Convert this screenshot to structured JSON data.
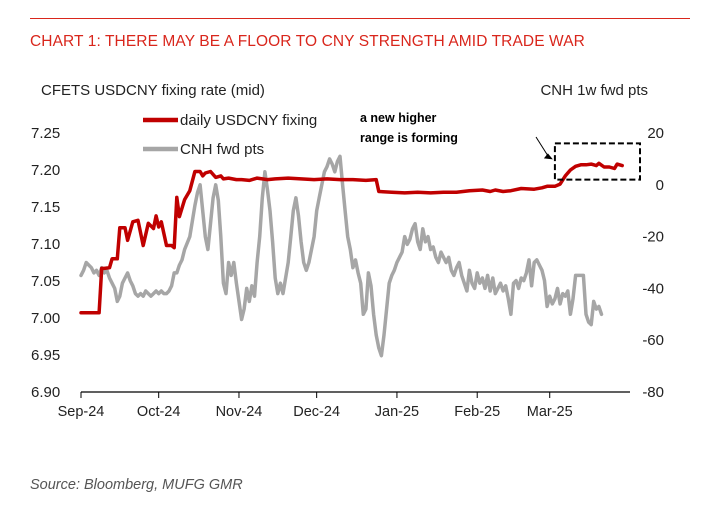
{
  "header": {
    "title": "CHART 1: THERE MAY BE A FLOOR TO CNY STRENGTH AMID TRADE WAR"
  },
  "footer": {
    "source": "Source: Bloomberg, MUFG GMR"
  },
  "colors": {
    "accent": "#d9261c",
    "fixing_line": "#c00000",
    "fwd_pts_line": "#a6a6a6",
    "text": "#222222"
  },
  "chart_data": {
    "type": "line",
    "title": "",
    "ylabel_left": "CFETS USDCNY fixing rate (mid)",
    "ylabel_right": "CNH 1w fwd pts",
    "x_tick_labels": [
      "Sep-24",
      "Oct-24",
      "Nov-24",
      "Dec-24",
      "Jan-25",
      "Feb-25",
      "Mar-25"
    ],
    "x_range_days": [
      0,
      212
    ],
    "x_ticks_days": [
      0,
      30,
      61,
      91,
      122,
      153,
      181
    ],
    "ylim_left": [
      6.9,
      7.25
    ],
    "y_ticks_left": [
      "7.25",
      "7.20",
      "7.15",
      "7.10",
      "7.05",
      "7.00",
      "6.95",
      "6.90"
    ],
    "ylim_right": [
      -80,
      20
    ],
    "y_ticks_right": [
      "20",
      "0",
      "-20",
      "-40",
      "-60",
      "-80"
    ],
    "annotation": {
      "line1": "a new higher",
      "line2": "range is forming"
    },
    "series": [
      {
        "name": "daily USDCNY fixing",
        "axis": "left",
        "points": [
          [
            0,
            7.007
          ],
          [
            7,
            7.007
          ],
          [
            8,
            7.067
          ],
          [
            9,
            7.067
          ],
          [
            11,
            7.068
          ],
          [
            12,
            7.08
          ],
          [
            14,
            7.08
          ],
          [
            15,
            7.122
          ],
          [
            17,
            7.122
          ],
          [
            18,
            7.105
          ],
          [
            20,
            7.13
          ],
          [
            22,
            7.132
          ],
          [
            24,
            7.098
          ],
          [
            26,
            7.128
          ],
          [
            28,
            7.121
          ],
          [
            29,
            7.138
          ],
          [
            30,
            7.123
          ],
          [
            31,
            7.13
          ],
          [
            33,
            7.098
          ],
          [
            35,
            7.098
          ],
          [
            36,
            7.095
          ],
          [
            37,
            7.163
          ],
          [
            38,
            7.137
          ],
          [
            40,
            7.16
          ],
          [
            42,
            7.172
          ],
          [
            44,
            7.198
          ],
          [
            46,
            7.198
          ],
          [
            47,
            7.192
          ],
          [
            48,
            7.196
          ],
          [
            50,
            7.198
          ],
          [
            52,
            7.19
          ],
          [
            54,
            7.192
          ],
          [
            55,
            7.188
          ],
          [
            57,
            7.189
          ],
          [
            60,
            7.187
          ],
          [
            62,
            7.187
          ],
          [
            65,
            7.186
          ],
          [
            68,
            7.189
          ],
          [
            72,
            7.187
          ],
          [
            75,
            7.188
          ],
          [
            80,
            7.189
          ],
          [
            85,
            7.188
          ],
          [
            90,
            7.187
          ],
          [
            95,
            7.188
          ],
          [
            100,
            7.187
          ],
          [
            105,
            7.187
          ],
          [
            110,
            7.186
          ],
          [
            114,
            7.187
          ],
          [
            115,
            7.171
          ],
          [
            120,
            7.17
          ],
          [
            125,
            7.169
          ],
          [
            130,
            7.17
          ],
          [
            135,
            7.169
          ],
          [
            140,
            7.17
          ],
          [
            145,
            7.17
          ],
          [
            150,
            7.172
          ],
          [
            155,
            7.173
          ],
          [
            158,
            7.171
          ],
          [
            160,
            7.173
          ],
          [
            163,
            7.171
          ],
          [
            166,
            7.172
          ],
          [
            170,
            7.175
          ],
          [
            175,
            7.174
          ],
          [
            178,
            7.176
          ],
          [
            180,
            7.178
          ],
          [
            183,
            7.178
          ],
          [
            185,
            7.181
          ],
          [
            187,
            7.192
          ],
          [
            189,
            7.2
          ],
          [
            191,
            7.205
          ],
          [
            193,
            7.207
          ],
          [
            195,
            7.207
          ],
          [
            197,
            7.208
          ],
          [
            199,
            7.206
          ],
          [
            200,
            7.209
          ],
          [
            202,
            7.204
          ],
          [
            204,
            7.204
          ],
          [
            206,
            7.202
          ],
          [
            207,
            7.208
          ],
          [
            209,
            7.206
          ]
        ]
      },
      {
        "name": "CNH fwd pts",
        "axis": "right",
        "points": [
          [
            0,
            -35
          ],
          [
            1,
            -33
          ],
          [
            2,
            -30
          ],
          [
            3,
            -31
          ],
          [
            4,
            -32
          ],
          [
            5,
            -34
          ],
          [
            6,
            -33
          ],
          [
            7,
            -35
          ],
          [
            8,
            -32
          ],
          [
            9,
            -34
          ],
          [
            10,
            -33
          ],
          [
            11,
            -36
          ],
          [
            12,
            -38
          ],
          [
            13,
            -40
          ],
          [
            14,
            -45
          ],
          [
            15,
            -43
          ],
          [
            16,
            -38
          ],
          [
            17,
            -36
          ],
          [
            18,
            -34
          ],
          [
            19,
            -37
          ],
          [
            20,
            -39
          ],
          [
            21,
            -42
          ],
          [
            22,
            -43
          ],
          [
            23,
            -42
          ],
          [
            24,
            -43
          ],
          [
            25,
            -41
          ],
          [
            26,
            -42
          ],
          [
            27,
            -43
          ],
          [
            28,
            -42
          ],
          [
            29,
            -41
          ],
          [
            30,
            -42
          ],
          [
            31,
            -41
          ],
          [
            32,
            -42
          ],
          [
            33,
            -42
          ],
          [
            34,
            -41
          ],
          [
            35,
            -39
          ],
          [
            36,
            -34
          ],
          [
            37,
            -34
          ],
          [
            38,
            -31
          ],
          [
            39,
            -29
          ],
          [
            40,
            -25
          ],
          [
            42,
            -20
          ],
          [
            44,
            -8
          ],
          [
            45,
            -3
          ],
          [
            46,
            0
          ],
          [
            47,
            -10
          ],
          [
            48,
            -20
          ],
          [
            49,
            -25
          ],
          [
            50,
            -15
          ],
          [
            51,
            -5
          ],
          [
            52,
            0
          ],
          [
            53,
            -6
          ],
          [
            54,
            -20
          ],
          [
            55,
            -38
          ],
          [
            56,
            -42
          ],
          [
            57,
            -30
          ],
          [
            58,
            -35
          ],
          [
            59,
            -30
          ],
          [
            60,
            -38
          ],
          [
            61,
            -45
          ],
          [
            62,
            -52
          ],
          [
            63,
            -48
          ],
          [
            64,
            -40
          ],
          [
            65,
            -45
          ],
          [
            66,
            -39
          ],
          [
            67,
            -43
          ],
          [
            68,
            -30
          ],
          [
            69,
            -20
          ],
          [
            70,
            -5
          ],
          [
            71,
            5
          ],
          [
            72,
            -2
          ],
          [
            73,
            -10
          ],
          [
            74,
            -22
          ],
          [
            75,
            -36
          ],
          [
            76,
            -42
          ],
          [
            77,
            -38
          ],
          [
            78,
            -42
          ],
          [
            80,
            -30
          ],
          [
            81,
            -20
          ],
          [
            82,
            -10
          ],
          [
            83,
            -5
          ],
          [
            84,
            -12
          ],
          [
            85,
            -22
          ],
          [
            86,
            -30
          ],
          [
            87,
            -33
          ],
          [
            88,
            -30
          ],
          [
            90,
            -20
          ],
          [
            91,
            -10
          ],
          [
            92,
            -5
          ],
          [
            93,
            0
          ],
          [
            94,
            5
          ],
          [
            95,
            7
          ],
          [
            96,
            10
          ],
          [
            97,
            8
          ],
          [
            98,
            5
          ],
          [
            99,
            9
          ],
          [
            100,
            11
          ],
          [
            101,
            0
          ],
          [
            102,
            -10
          ],
          [
            103,
            -20
          ],
          [
            104,
            -25
          ],
          [
            105,
            -32
          ],
          [
            106,
            -29
          ],
          [
            107,
            -34
          ],
          [
            108,
            -38
          ],
          [
            109,
            -50
          ],
          [
            110,
            -48
          ],
          [
            111,
            -34
          ],
          [
            112,
            -39
          ],
          [
            113,
            -50
          ],
          [
            114,
            -58
          ],
          [
            115,
            -63
          ],
          [
            116,
            -66
          ],
          [
            117,
            -58
          ],
          [
            118,
            -48
          ],
          [
            119,
            -38
          ],
          [
            120,
            -35
          ],
          [
            121,
            -33
          ],
          [
            122,
            -30
          ],
          [
            123,
            -28
          ],
          [
            124,
            -26
          ],
          [
            125,
            -20
          ],
          [
            126,
            -23
          ],
          [
            127,
            -21
          ],
          [
            128,
            -17
          ],
          [
            129,
            -15
          ],
          [
            130,
            -22
          ],
          [
            131,
            -25
          ],
          [
            132,
            -17
          ],
          [
            133,
            -22
          ],
          [
            134,
            -20
          ],
          [
            135,
            -25
          ],
          [
            136,
            -24
          ],
          [
            137,
            -28
          ],
          [
            138,
            -30
          ],
          [
            139,
            -26
          ],
          [
            140,
            -28
          ],
          [
            141,
            -30
          ],
          [
            142,
            -28
          ],
          [
            143,
            -33
          ],
          [
            144,
            -35
          ],
          [
            145,
            -32
          ],
          [
            146,
            -30
          ],
          [
            147,
            -35
          ],
          [
            148,
            -38
          ],
          [
            149,
            -41
          ],
          [
            150,
            -33
          ],
          [
            151,
            -38
          ],
          [
            152,
            -40
          ],
          [
            153,
            -34
          ],
          [
            154,
            -38
          ],
          [
            155,
            -36
          ],
          [
            156,
            -40
          ],
          [
            157,
            -35
          ],
          [
            158,
            -41
          ],
          [
            159,
            -36
          ],
          [
            160,
            -42
          ],
          [
            161,
            -40
          ],
          [
            162,
            -38
          ],
          [
            163,
            -41
          ],
          [
            164,
            -39
          ],
          [
            165,
            -44
          ],
          [
            166,
            -50
          ],
          [
            167,
            -38
          ],
          [
            168,
            -37
          ],
          [
            169,
            -40
          ],
          [
            170,
            -36
          ],
          [
            171,
            -37
          ],
          [
            172,
            -34
          ],
          [
            173,
            -29
          ],
          [
            174,
            -39
          ],
          [
            175,
            -30
          ],
          [
            176,
            -29
          ],
          [
            177,
            -31
          ],
          [
            178,
            -33
          ],
          [
            179,
            -37
          ],
          [
            180,
            -47
          ],
          [
            181,
            -43
          ],
          [
            182,
            -46
          ],
          [
            183,
            -44
          ],
          [
            184,
            -40
          ],
          [
            185,
            -46
          ],
          [
            186,
            -42
          ],
          [
            187,
            -43
          ],
          [
            188,
            -41
          ],
          [
            189,
            -50
          ],
          [
            190,
            -44
          ],
          [
            191,
            -35
          ],
          [
            192,
            -35
          ],
          [
            193,
            -35
          ],
          [
            194,
            -35
          ],
          [
            195,
            -50
          ],
          [
            196,
            -53
          ],
          [
            197,
            -54
          ],
          [
            198,
            -45
          ],
          [
            199,
            -48
          ],
          [
            200,
            -47
          ],
          [
            201,
            -50
          ]
        ]
      }
    ]
  }
}
